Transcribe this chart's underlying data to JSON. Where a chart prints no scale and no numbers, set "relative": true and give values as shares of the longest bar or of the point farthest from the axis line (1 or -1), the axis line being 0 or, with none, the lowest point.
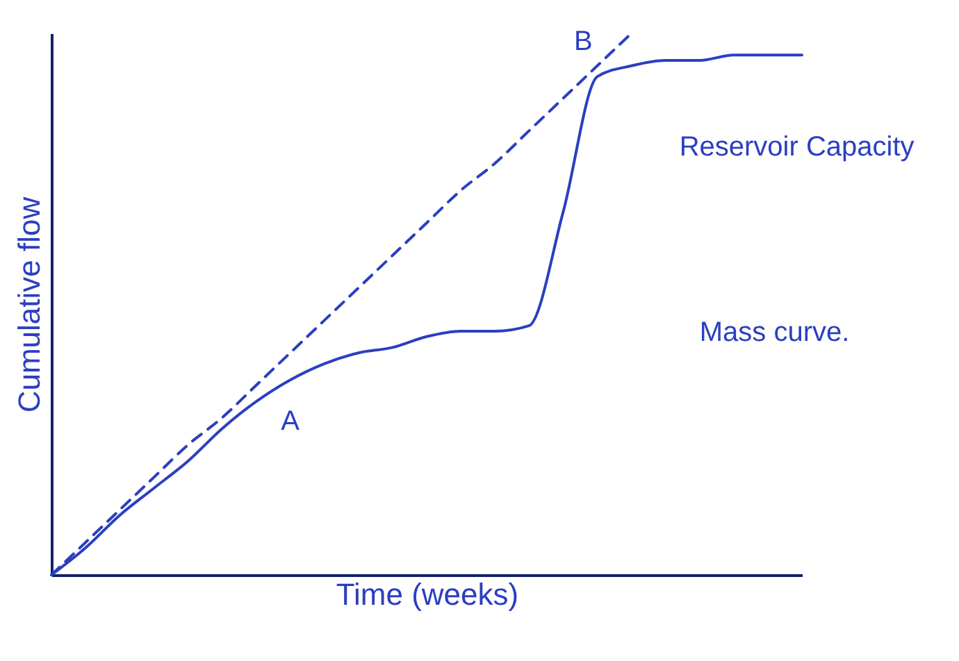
{
  "chart_data": {
    "type": "line",
    "relative": true,
    "xlabel": "Time (weeks)",
    "ylabel": "Cumulative flow",
    "categories": [
      null,
      null,
      null,
      null,
      null,
      null,
      null,
      null,
      null,
      null,
      null,
      null,
      null,
      null,
      null,
      null,
      null,
      null,
      null,
      null,
      null,
      null,
      null
    ],
    "series": [
      {
        "color": "#2b3fc0",
        "line_style": "solid",
        "values": [
          0,
          0.05,
          0.11,
          0.16,
          0.21,
          0.27,
          0.32,
          0.36,
          0.39,
          0.41,
          0.42,
          0.44,
          0.45,
          0.45,
          0.46,
          0.67,
          0.92,
          0.94,
          0.95,
          0.95,
          0.96,
          0.96,
          0.96
        ]
      },
      {
        "color": "#2b3fc0",
        "line_style": "dashed",
        "values": [
          0,
          0.06,
          0.12,
          0.18,
          0.24,
          0.29,
          0.35,
          0.41,
          0.47,
          0.53,
          0.59,
          0.65,
          0.71,
          0.76,
          0.82,
          0.88,
          0.94,
          1.0,
          null,
          null,
          null,
          null,
          null
        ]
      }
    ],
    "annotations": [
      "A",
      "B",
      "Reservoir Capacity",
      "Mass curve."
    ]
  }
}
